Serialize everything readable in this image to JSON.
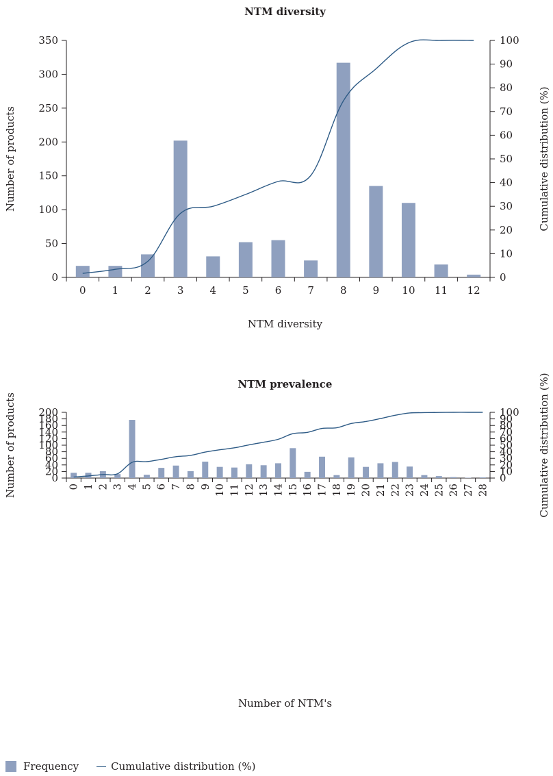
{
  "colors": {
    "bar": "#8fa0bf",
    "line": "#2e5b86",
    "axis": "#231f20"
  },
  "legend": {
    "bar_label": "Frequency",
    "line_label": "Cumulative distribution (%)"
  },
  "chart_data": [
    {
      "type": "bar",
      "title": "NTM diversity",
      "xlabel": "NTM diversity",
      "ylabel": "Number of products",
      "y2label": "Cumulative distribution (%)",
      "ylim": [
        0,
        350
      ],
      "y2lim": [
        0,
        100
      ],
      "yticks": [
        0,
        50,
        100,
        150,
        200,
        250,
        300,
        350
      ],
      "y2ticks": [
        0,
        10,
        20,
        30,
        40,
        50,
        60,
        70,
        80,
        90,
        100
      ],
      "categories": [
        "0",
        "1",
        "2",
        "3",
        "4",
        "5",
        "6",
        "7",
        "8",
        "9",
        "10",
        "11",
        "12"
      ],
      "series": [
        {
          "name": "Frequency",
          "kind": "bar",
          "values": [
            17,
            17,
            34,
            202,
            31,
            52,
            55,
            25,
            317,
            135,
            110,
            19,
            4
          ]
        },
        {
          "name": "Cumulative distribution (%)",
          "kind": "line",
          "axis": "right",
          "values": [
            1.7,
            3.4,
            6.8,
            27,
            30,
            35,
            40.5,
            43,
            74.5,
            88,
            99,
            100,
            100
          ]
        }
      ]
    },
    {
      "type": "bar",
      "title": "NTM prevalence",
      "xlabel": "Number of NTM's",
      "ylabel": "Number of products",
      "y2label": "Cumulative distribution (%)",
      "ylim": [
        0,
        200
      ],
      "y2lim": [
        0,
        100
      ],
      "yticks": [
        0,
        20,
        40,
        60,
        80,
        100,
        120,
        140,
        160,
        180,
        200
      ],
      "y2ticks": [
        0,
        10,
        20,
        30,
        40,
        50,
        60,
        70,
        80,
        90,
        100
      ],
      "categories": [
        "0",
        "1",
        "2",
        "3",
        "4",
        "5",
        "6",
        "7",
        "8",
        "9",
        "10",
        "11",
        "12",
        "13",
        "14",
        "15",
        "16",
        "17",
        "18",
        "19",
        "20",
        "21",
        "22",
        "23",
        "24",
        "25",
        "26",
        "27",
        "28"
      ],
      "series": [
        {
          "name": "Frequency",
          "kind": "bar",
          "values": [
            16,
            16,
            21,
            12,
            177,
            10,
            31,
            38,
            21,
            50,
            34,
            32,
            42,
            39,
            45,
            91,
            19,
            65,
            9,
            63,
            34,
            45,
            49,
            35,
            9,
            6,
            3,
            1,
            2
          ]
        },
        {
          "name": "Cumulative distribution (%)",
          "kind": "line",
          "axis": "right",
          "values": [
            1.6,
            3.2,
            5.3,
            6.5,
            24,
            25,
            28.5,
            32.5,
            34.5,
            39.5,
            43,
            46,
            50.5,
            54.5,
            59,
            67.5,
            69.5,
            75.5,
            76.5,
            83,
            86,
            90.5,
            95.5,
            99,
            99.5,
            99.8,
            100,
            100,
            100
          ]
        }
      ]
    }
  ]
}
